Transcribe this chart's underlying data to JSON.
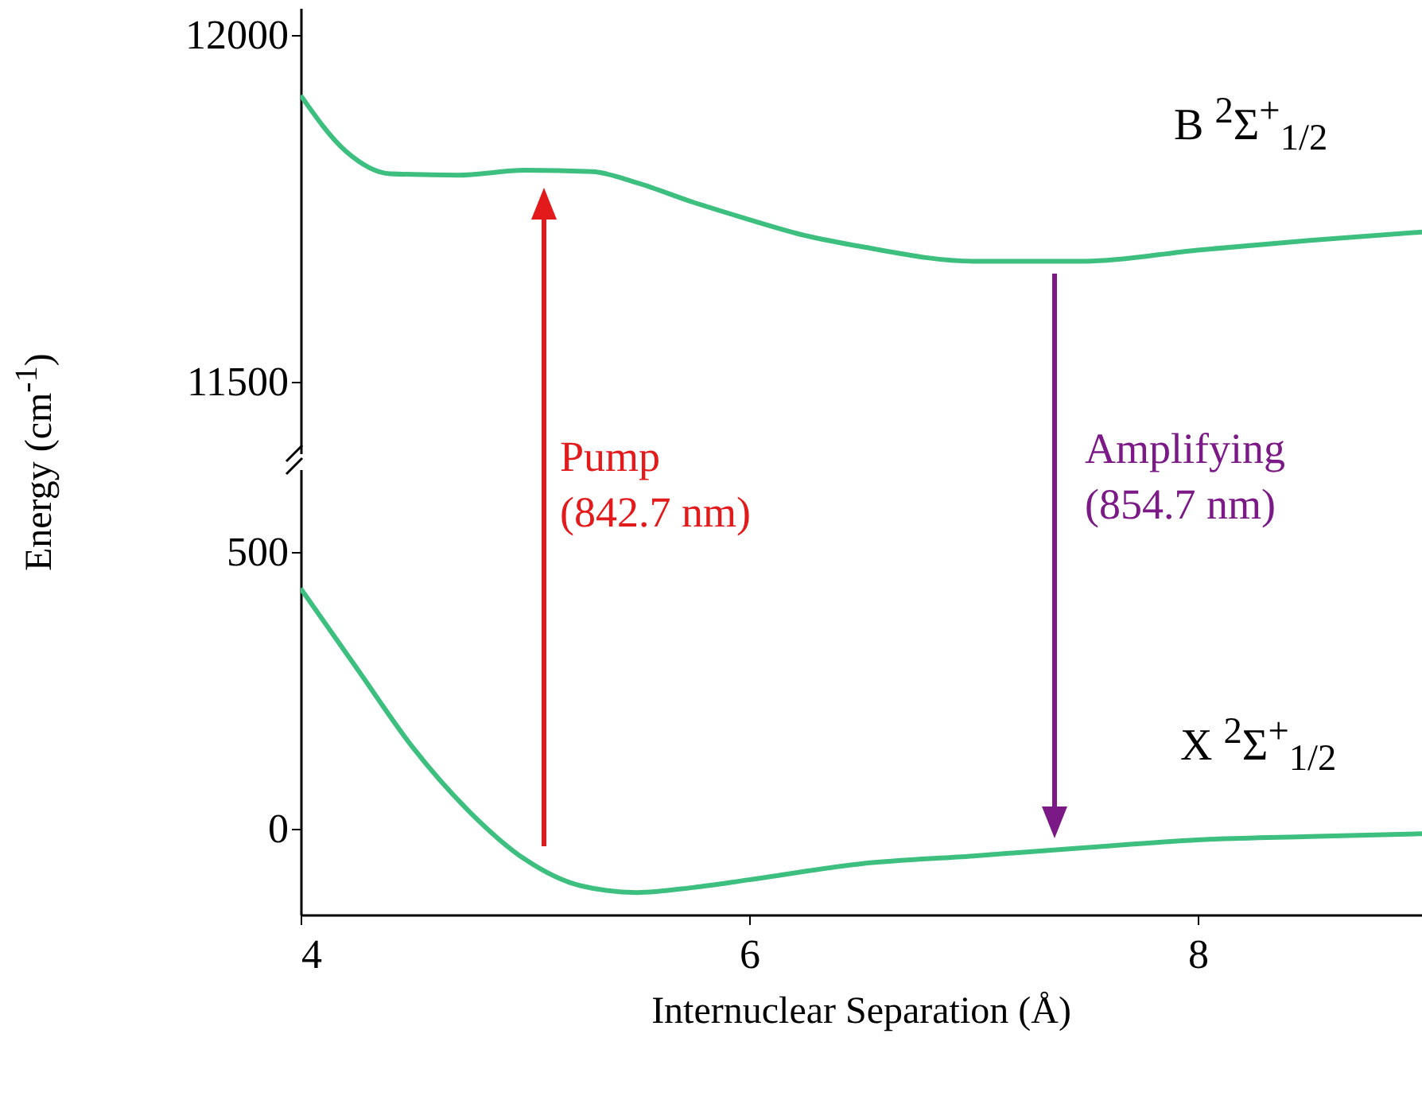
{
  "chart_data": [
    {
      "type": "line",
      "xlim": [
        4,
        9
      ],
      "ylim": [
        11397,
        12039
      ],
      "yticks": [
        11500,
        12000
      ],
      "tick_labels": "y",
      "grid": false,
      "series": [
        {
          "name": "B $^{2}$Σ$^{+}$$_{1/2}$",
          "color": "#3dbf7f",
          "x": [
            4,
            4.2,
            4.4,
            4.7,
            5,
            5.3,
            5.5,
            5.75,
            6,
            6.25,
            6.5,
            7,
            7.5,
            8,
            8.5,
            9
          ],
          "values": [
            11913,
            11833,
            11800,
            11798,
            11805,
            11803,
            11787,
            11759,
            11734,
            11711,
            11695,
            11674,
            11674,
            11690,
            11704,
            11716
          ]
        }
      ]
    },
    {
      "type": "line",
      "xlim": [
        4,
        9
      ],
      "ylim": [
        -155,
        649
      ],
      "xticks": [
        4,
        6,
        8
      ],
      "yticks": [
        0,
        500
      ],
      "grid": false,
      "xlabel": "Internuclear Separation (Å)",
      "ylabel": "Energy (cm$^{-1}$)",
      "annotations": [
        "Pump\n(842.7 nm)",
        "Amplifying\n(854.7 nm)"
      ],
      "series": [
        {
          "name": "X $^{2}$Σ$^{+}$$_{1/2}$",
          "color": "#3dbf7f",
          "x": [
            4,
            4.25,
            4.5,
            4.75,
            5,
            5.25,
            5.5,
            5.75,
            6,
            6.5,
            7,
            7.5,
            8,
            8.5,
            9
          ],
          "values": [
            434,
            290,
            147,
            32,
            -55,
            -103,
            -115,
            -106,
            -92,
            -63,
            -49,
            -34,
            -20,
            -14,
            -9
          ]
        }
      ]
    }
  ]
}
